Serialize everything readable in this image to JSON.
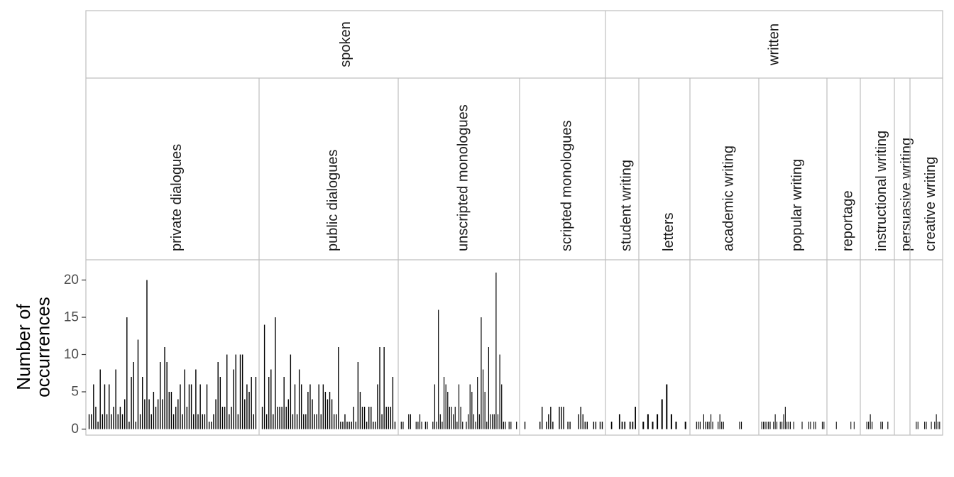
{
  "chart_data": {
    "type": "bar",
    "ylabel": [
      "Number of",
      "occurrences"
    ],
    "ylim": [
      0,
      22
    ],
    "y_ticks": [
      0,
      5,
      10,
      15,
      20
    ],
    "grid": false,
    "bar_color": "#000000",
    "panel_border_color": "#bfbfbf",
    "strip_fill": "#ffffff",
    "groups": [
      {
        "name": "spoken",
        "panels": [
          {
            "label": "private dialogues",
            "values": [
              2,
              2,
              6,
              3,
              1,
              8,
              2,
              6,
              2,
              6,
              2,
              3,
              8,
              2,
              3,
              2,
              4,
              15,
              1,
              7,
              9,
              1,
              12,
              2,
              7,
              4,
              20,
              4,
              2,
              5,
              3,
              4,
              9,
              4,
              11,
              9,
              5,
              5,
              2,
              3,
              4,
              6,
              2,
              8,
              3,
              6,
              6,
              2,
              8,
              2,
              6,
              2,
              2,
              6,
              1,
              1,
              2,
              4,
              9,
              7,
              3,
              3,
              10,
              2,
              3,
              8,
              10,
              2,
              10,
              10,
              4,
              6,
              5,
              7,
              2,
              7
            ]
          },
          {
            "label": "public dialogues",
            "values": [
              3,
              14,
              2,
              7,
              8,
              2,
              15,
              3,
              3,
              3,
              7,
              3,
              4,
              10,
              2,
              6,
              2,
              8,
              6,
              2,
              2,
              5,
              6,
              4,
              2,
              2,
              6,
              2,
              6,
              5,
              4,
              5,
              4,
              2,
              2,
              11,
              1,
              1,
              2,
              1,
              1,
              1,
              3,
              1,
              9,
              5,
              3,
              3,
              1,
              3,
              3,
              1,
              1,
              6,
              11,
              2,
              11,
              3,
              3,
              3,
              7,
              1
            ]
          },
          {
            "label": "unscripted monologues",
            "values": [
              1,
              1,
              0,
              0,
              2,
              2,
              0,
              0,
              1,
              1,
              2,
              1,
              0,
              1,
              1,
              0,
              0,
              1,
              6,
              1,
              16,
              2,
              1,
              7,
              6,
              5,
              3,
              3,
              2,
              3,
              1,
              6,
              3,
              1,
              0,
              1,
              2,
              6,
              5,
              2,
              1,
              7,
              2,
              15,
              8,
              5,
              1,
              11,
              2,
              2,
              2,
              21,
              2,
              10,
              6,
              1,
              1,
              0,
              1,
              1,
              0,
              0,
              1
            ]
          },
          {
            "label": "scripted monologues",
            "values": [
              0,
              1,
              0,
              0,
              0,
              0,
              0,
              0,
              1,
              3,
              0,
              1,
              2,
              3,
              1,
              0,
              0,
              3,
              3,
              3,
              0,
              1,
              1,
              0,
              0,
              0,
              2,
              3,
              2,
              1,
              1,
              0,
              0,
              1,
              1,
              0,
              1,
              1
            ]
          }
        ]
      },
      {
        "name": "written",
        "panels": [
          {
            "label": "student writing",
            "values": [
              0,
              1,
              0,
              0,
              2,
              1,
              1,
              0,
              1,
              1,
              3
            ]
          },
          {
            "label": "letters",
            "values": [
              1,
              2,
              1,
              2,
              4,
              6,
              2,
              1,
              0,
              1
            ]
          },
          {
            "label": "academic writing",
            "values": [
              0,
              0,
              1,
              1,
              1,
              0,
              2,
              1,
              1,
              1,
              2,
              1,
              0,
              0,
              1,
              2,
              1,
              1,
              0,
              0,
              0,
              0,
              0,
              0,
              0,
              0,
              1,
              1,
              0,
              0,
              0,
              0,
              0,
              0,
              0,
              0
            ]
          },
          {
            "label": "popular writing",
            "values": [
              1,
              1,
              1,
              1,
              1,
              1,
              0,
              1,
              2,
              1,
              0,
              1,
              1,
              2,
              3,
              1,
              1,
              1,
              0,
              1,
              0,
              0,
              0,
              0,
              1,
              0,
              0,
              0,
              1,
              1,
              0,
              1,
              1,
              0,
              0,
              0,
              1,
              1
            ]
          },
          {
            "label": "reportage",
            "values": [
              0,
              0,
              0,
              0,
              1,
              0,
              0,
              0,
              0,
              0,
              0,
              0,
              0,
              1,
              0,
              1,
              0,
              0
            ]
          },
          {
            "label": "instructional writing",
            "values": [
              0,
              0,
              1,
              1,
              2,
              1,
              0,
              0,
              0,
              0,
              1,
              1,
              0,
              0,
              1,
              0,
              0
            ]
          },
          {
            "label": "persuasive writing",
            "values": [
              0,
              0,
              0,
              0,
              0,
              0,
              0,
              0
            ]
          },
          {
            "label": "creative writing",
            "values": [
              0,
              0,
              1,
              1,
              0,
              0,
              0,
              1,
              1,
              0,
              0,
              1,
              0,
              1,
              2,
              1,
              1
            ]
          }
        ]
      }
    ]
  }
}
